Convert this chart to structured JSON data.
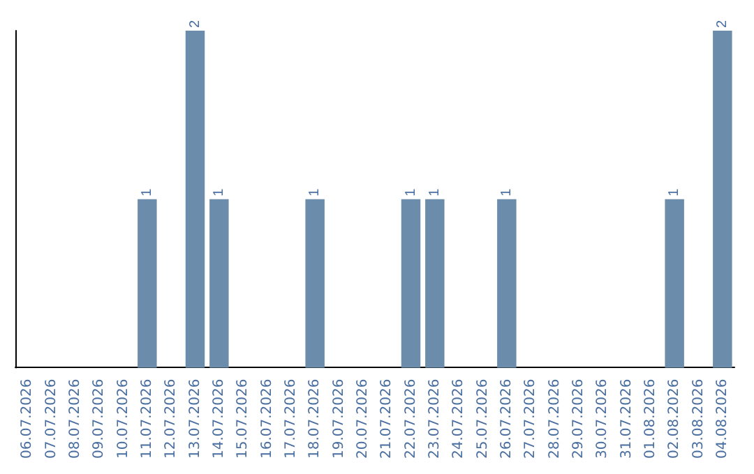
{
  "chart_data": {
    "type": "bar",
    "categories": [
      "06.07.2026",
      "07.07.2026",
      "08.07.2026",
      "09.07.2026",
      "10.07.2026",
      "11.07.2026",
      "12.07.2026",
      "13.07.2026",
      "14.07.2026",
      "15.07.2026",
      "16.07.2026",
      "17.07.2026",
      "18.07.2026",
      "19.07.2026",
      "20.07.2026",
      "21.07.2026",
      "22.07.2026",
      "23.07.2026",
      "24.07.2026",
      "25.07.2026",
      "26.07.2026",
      "27.07.2026",
      "28.07.2026",
      "29.07.2026",
      "30.07.2026",
      "31.07.2026",
      "01.08.2026",
      "02.08.2026",
      "03.08.2026",
      "04.08.2026"
    ],
    "values": [
      0,
      0,
      0,
      0,
      0,
      1,
      0,
      2,
      1,
      0,
      0,
      0,
      1,
      0,
      0,
      0,
      1,
      1,
      0,
      0,
      1,
      0,
      0,
      0,
      0,
      0,
      0,
      1,
      0,
      2
    ],
    "value_labels": [
      null,
      null,
      null,
      null,
      null,
      "1",
      null,
      "2",
      "1",
      null,
      null,
      null,
      "1",
      null,
      null,
      null,
      "1",
      "1",
      null,
      null,
      "1",
      null,
      null,
      null,
      null,
      null,
      null,
      "1",
      null,
      "2"
    ],
    "color": "#6b8caa",
    "tick_labels": "x",
    "grid": false
  }
}
